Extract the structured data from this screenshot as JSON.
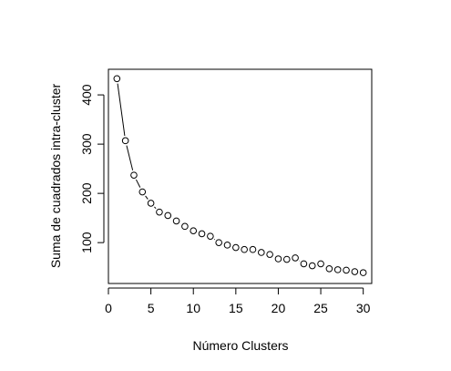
{
  "chart_data": {
    "type": "line",
    "xlabel": "Número Clusters",
    "ylabel": "Suma de cuadrados intra-cluster",
    "xlim": [
      0,
      31
    ],
    "ylim": [
      17,
      452
    ],
    "x_ticks": [
      0,
      5,
      10,
      15,
      20,
      25,
      30
    ],
    "y_ticks": [
      100,
      200,
      300,
      400
    ],
    "markers": "open-circle",
    "line_style": "connecting segments",
    "grid": false,
    "x": [
      1,
      2,
      3,
      4,
      5,
      6,
      7,
      8,
      9,
      10,
      11,
      12,
      13,
      14,
      15,
      16,
      17,
      18,
      19,
      20,
      21,
      22,
      23,
      24,
      25,
      26,
      27,
      28,
      29,
      30
    ],
    "y": [
      433,
      307,
      237,
      203,
      180,
      162,
      155,
      144,
      133,
      124,
      118,
      113,
      100,
      95,
      90,
      86,
      86,
      80,
      76,
      67,
      66,
      69,
      57,
      53,
      57,
      47,
      45,
      44,
      41,
      39
    ],
    "colors": {
      "line": "#000000",
      "marker_stroke": "#000000",
      "background": "#ffffff"
    }
  }
}
